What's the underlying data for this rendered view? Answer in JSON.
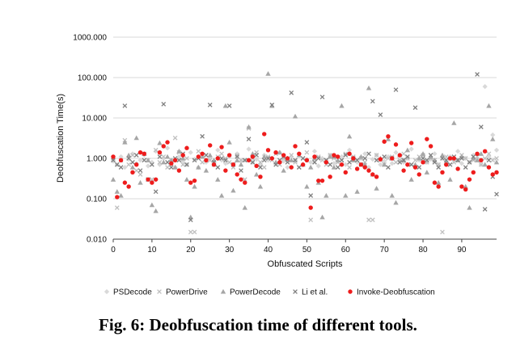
{
  "caption": "Fig. 6: Deobfuscation time of different tools.",
  "chart_data": {
    "type": "scatter",
    "title": "",
    "xlabel": "Obfuscated Scripts",
    "ylabel": "Deobfuscation Time(s)",
    "yscale": "log",
    "xlim": [
      0,
      99
    ],
    "ylim": [
      0.01,
      1000
    ],
    "x_ticks": [
      "0",
      "10",
      "20",
      "30",
      "40",
      "50",
      "60",
      "70",
      "80",
      "90"
    ],
    "y_ticks": [
      "0.010",
      "0.100",
      "1.000",
      "10.000",
      "100.000",
      "1000.000"
    ],
    "grid": "horizontal",
    "legend_position": "bottom",
    "series": [
      {
        "name": "PSDecode",
        "marker": "diamond",
        "color": "#d9d9d9",
        "values": [
          0.85,
          0.7,
          1.1,
          0.6,
          0.95,
          1.3,
          0.75,
          0.9,
          1.2,
          0.65,
          0.8,
          1.5,
          0.7,
          1.0,
          1.8,
          0.9,
          0.6,
          1.1,
          0.85,
          0.7,
          1.4,
          0.95,
          0.6,
          1.2,
          0.8,
          1.0,
          0.7,
          1.6,
          0.9,
          0.75,
          1.1,
          0.65,
          1.3,
          0.85,
          0.9,
          1.7,
          0.8,
          0.95,
          0.7,
          1.2,
          0.9,
          1.0,
          0.75,
          1.4,
          0.85,
          0.6,
          1.1,
          0.9,
          1.3,
          0.7,
          0.95,
          0.8,
          1.5,
          0.65,
          1.0,
          0.9,
          1.2,
          0.75,
          0.85,
          1.1,
          0.7,
          1.6,
          0.9,
          0.8,
          1.0,
          1.3,
          0.6,
          0.95,
          1.2,
          0.7,
          0.85,
          1.1,
          0.75,
          1.4,
          0.9,
          0.8,
          1.0,
          1.7,
          0.65,
          0.9,
          1.2,
          0.8,
          0.95,
          1.3,
          0.7,
          1.0,
          0.85,
          1.1,
          0.9,
          1.5,
          0.75,
          1.0,
          0.8,
          1.2,
          0.95,
          0.7,
          60,
          1.1,
          3.8,
          1.6
        ]
      },
      {
        "name": "PowerDrive",
        "marker": "x",
        "color": "#bfbfbf",
        "values": [
          1.0,
          0.06,
          0.9,
          2.8,
          0.7,
          1.2,
          0.5,
          0.4,
          1.3,
          0.9,
          0.3,
          1.6,
          0.8,
          1.1,
          0.6,
          0.9,
          3.2,
          1.4,
          0.7,
          1.0,
          0.015,
          0.015,
          1.5,
          0.8,
          1.2,
          0.9,
          0.7,
          1.1,
          1.3,
          1.0,
          0.8,
          0.6,
          1.2,
          0.9,
          0.3,
          5.5,
          1.0,
          1.4,
          0.8,
          0.6,
          1.1,
          0.9,
          1.3,
          0.7,
          1.0,
          0.9,
          1.2,
          0.8,
          0.6,
          1.0,
          1.4,
          0.03,
          0.8,
          1.1,
          0.9,
          0.7,
          1.2,
          1.0,
          0.8,
          0.9,
          1.3,
          0.6,
          1.1,
          0.9,
          1.0,
          0.8,
          0.03,
          0.03,
          1.2,
          0.9,
          0.7,
          1.0,
          1.1,
          0.8,
          0.9,
          1.3,
          1.0,
          0.7,
          0.9,
          1.1,
          1.2,
          0.8,
          1.0,
          0.9,
          0.7,
          0.015,
          1.1,
          1.0,
          0.8,
          0.9,
          1.2,
          1.0,
          0.8,
          0.9,
          1.1,
          0.7,
          1.0,
          1.3,
          0.9,
          1.0
        ]
      },
      {
        "name": "PowerDecode",
        "marker": "triangle",
        "color": "#a6a6a6",
        "values": [
          0.3,
          0.15,
          0.12,
          2.5,
          1.2,
          0.6,
          3.2,
          0.25,
          1.3,
          0.9,
          0.07,
          0.05,
          2.4,
          0.8,
          1.1,
          0.9,
          0.6,
          1.5,
          1.0,
          0.3,
          0.035,
          0.2,
          0.6,
          1.1,
          0.5,
          1.2,
          0.9,
          0.3,
          0.12,
          20,
          2.5,
          0.16,
          0.9,
          0.7,
          0.06,
          6,
          1.3,
          0.4,
          0.2,
          1.1,
          125,
          20,
          0.8,
          1.4,
          0.5,
          1.0,
          0.9,
          11,
          1.2,
          0.7,
          0.2,
          0.6,
          1.0,
          0.25,
          0.035,
          0.12,
          1.1,
          0.6,
          0.9,
          20,
          0.12,
          3.5,
          0.9,
          0.15,
          1.1,
          0.7,
          55,
          0.4,
          0.18,
          1.0,
          0.7,
          3.0,
          0.12,
          0.08,
          1.2,
          0.9,
          1.6,
          0.3,
          0.7,
          1.0,
          1.3,
          0.45,
          1.1,
          0.9,
          0.25,
          1.2,
          0.8,
          0.3,
          7.5,
          0.9,
          1.1,
          0.2,
          0.06,
          1.0,
          0.9,
          1.3,
          0.7,
          20,
          3.0,
          0.8
        ]
      },
      {
        "name": "Li et al.",
        "marker": "x",
        "color": "#7f7f7f",
        "values": [
          0.9,
          0.7,
          0.6,
          20,
          1.0,
          0.8,
          1.2,
          0.5,
          0.9,
          0.3,
          0.7,
          0.15,
          1.1,
          22,
          0.8,
          0.6,
          1.0,
          0.9,
          1.3,
          0.7,
          0.03,
          0.9,
          1.0,
          3.5,
          1.2,
          21,
          0.8,
          0.6,
          1.0,
          0.9,
          20,
          0.7,
          1.1,
          0.5,
          0.9,
          3.0,
          0.8,
          1.2,
          0.6,
          0.9,
          1.0,
          21,
          0.7,
          0.9,
          1.1,
          0.8,
          42,
          0.9,
          0.6,
          1.0,
          2.5,
          0.12,
          0.8,
          1.0,
          33,
          0.9,
          0.7,
          1.1,
          0.6,
          0.9,
          1.2,
          0.8,
          1.0,
          0.9,
          0.7,
          1.0,
          1.3,
          26,
          0.9,
          12,
          1.1,
          0.6,
          1.0,
          50,
          0.8,
          0.9,
          1.1,
          0.7,
          18,
          0.6,
          1.0,
          0.9,
          1.2,
          0.8,
          0.6,
          1.0,
          0.9,
          0.7,
          1.1,
          0.9,
          1.0,
          0.6,
          0.8,
          1.1,
          120,
          6,
          0.055,
          0.9,
          0.35,
          0.13
        ]
      },
      {
        "name": "Invoke-Deobfuscation",
        "marker": "circle",
        "color": "#ee1c1c",
        "values": [
          1.1,
          0.11,
          0.9,
          0.25,
          0.2,
          0.45,
          0.7,
          1.4,
          1.3,
          0.3,
          0.25,
          0.3,
          1.4,
          2.0,
          2.5,
          0.75,
          0.9,
          0.5,
          1.2,
          1.8,
          0.25,
          0.28,
          1.1,
          1.3,
          0.9,
          2.1,
          0.7,
          1.0,
          1.9,
          0.5,
          1.2,
          0.7,
          0.4,
          0.3,
          0.25,
          0.9,
          1.1,
          0.65,
          0.35,
          4.0,
          1.6,
          1.0,
          1.4,
          0.8,
          1.2,
          1.0,
          0.6,
          2.0,
          1.3,
          0.7,
          0.9,
          0.06,
          1.1,
          0.28,
          0.28,
          0.8,
          0.35,
          1.2,
          1.1,
          0.7,
          0.45,
          1.3,
          1.0,
          0.55,
          0.7,
          0.6,
          0.5,
          0.4,
          0.35,
          0.95,
          2.6,
          3.5,
          1.0,
          2.2,
          1.2,
          0.5,
          0.7,
          2.4,
          0.6,
          0.4,
          0.8,
          3.0,
          2.0,
          0.25,
          0.2,
          0.45,
          0.7,
          1.0,
          1.0,
          0.55,
          0.2,
          0.17,
          0.3,
          0.45,
          1.3,
          0.9,
          1.5,
          0.6,
          0.4,
          0.45
        ]
      }
    ]
  }
}
